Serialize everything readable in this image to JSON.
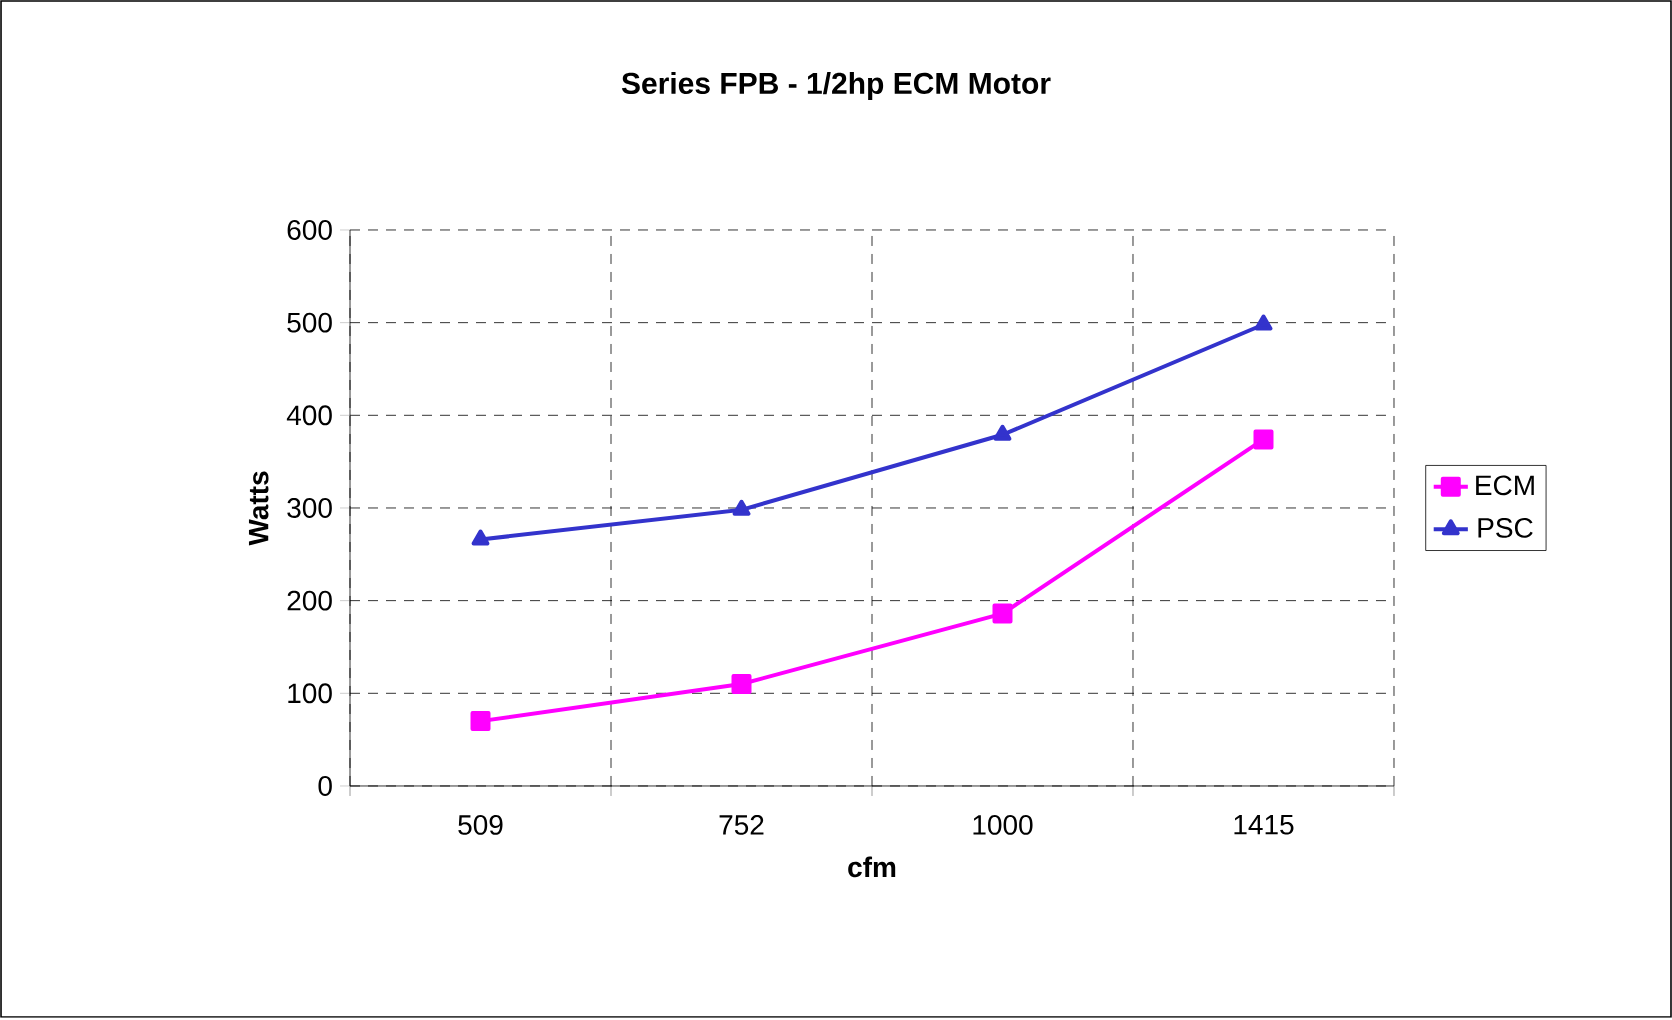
{
  "chart_data": {
    "type": "line",
    "title": "Series FPB - 1/2hp ECM Motor",
    "xlabel": "cfm",
    "ylabel": "Watts",
    "categories": [
      "509",
      "752",
      "1000",
      "1415"
    ],
    "series": [
      {
        "name": "ECM",
        "color": "#ff00ff",
        "marker": "square",
        "values": [
          70,
          110,
          186,
          374
        ]
      },
      {
        "name": "PSC",
        "color": "#3333cc",
        "marker": "triangle",
        "values": [
          266,
          298,
          379,
          498
        ]
      }
    ],
    "ylim": [
      0,
      600
    ],
    "yticks": [
      0,
      100,
      200,
      300,
      400,
      500,
      600
    ],
    "grid": true,
    "legend": "right",
    "line_style": "solid"
  }
}
